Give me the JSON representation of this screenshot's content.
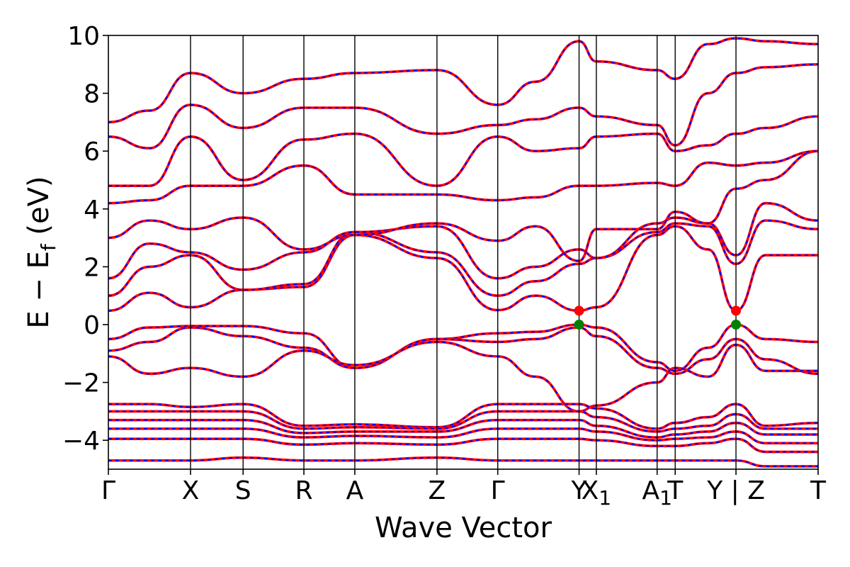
{
  "chart_data": {
    "type": "line",
    "title": "",
    "xlabel": "Wave Vector",
    "ylabel": "E − E",
    "ylabel_sub": "f",
    "ylabel_unit": " (eV)",
    "ylim": [
      -5,
      10
    ],
    "yticks": [
      10,
      8,
      6,
      4,
      2,
      0,
      -2,
      -4
    ],
    "ytick_labels": [
      "10",
      "8",
      "6",
      "4",
      "2",
      "0",
      "−2",
      "−4"
    ],
    "grid": false,
    "legend": "none",
    "k_path_labels": [
      "Γ",
      "X",
      "S",
      "R",
      "A",
      "Z",
      "Γ",
      "Y",
      "X1",
      "A1",
      "T",
      "Y | Z",
      "T"
    ],
    "k_path_positions": [
      0,
      1.0,
      1.64,
      2.38,
      3.0,
      4.0,
      4.74,
      5.73,
      5.94,
      6.68,
      6.9,
      7.64,
      8.64
    ],
    "line_colors": {
      "band_solid": "#ff0000",
      "band_dash": "#0000ff",
      "vbm_marker": "#008000",
      "cbm_marker": "#ff0000"
    },
    "band_extrema": [
      {
        "name": "CBM",
        "k": 5.73,
        "energy": 0.48
      },
      {
        "name": "VBM",
        "k": 5.73,
        "energy": 0.0
      },
      {
        "name": "CBM",
        "k": 7.64,
        "energy": 0.48
      },
      {
        "name": "VBM",
        "k": 7.64,
        "energy": 0.0
      }
    ],
    "series": [
      {
        "x": [
          0,
          0.5,
          1.0,
          1.64,
          2.38,
          3.0,
          4.0,
          4.74,
          5.2,
          5.73,
          5.94,
          6.68,
          6.9,
          7.3,
          7.64,
          8.0,
          8.64
        ],
        "values": [
          -0.5,
          -0.1,
          -0.05,
          -0.05,
          -0.3,
          -1.5,
          -0.5,
          -0.3,
          -0.25,
          0.0,
          -0.1,
          -1.3,
          -1.6,
          -0.8,
          0.0,
          -0.5,
          -0.6
        ]
      },
      {
        "x": [
          0,
          0.5,
          1.0,
          1.64,
          2.38,
          3.0,
          4.0,
          4.74,
          5.2,
          5.73,
          5.94,
          6.68,
          6.9,
          7.3,
          7.64,
          8.0,
          8.64
        ],
        "values": [
          -0.9,
          -0.6,
          -0.1,
          -0.4,
          -0.8,
          -1.5,
          -0.5,
          -0.6,
          -0.5,
          -0.1,
          -0.4,
          -1.5,
          -1.7,
          -1.2,
          -0.5,
          -1.2,
          -1.7
        ]
      },
      {
        "x": [
          0,
          0.5,
          1.0,
          1.64,
          2.38,
          3.0,
          4.0,
          4.74,
          5.2,
          5.73,
          5.94,
          6.68,
          6.9,
          7.3,
          7.64,
          8.0,
          8.64
        ],
        "values": [
          -1.1,
          -1.7,
          -1.5,
          -1.8,
          -0.9,
          -1.4,
          -0.6,
          -1.1,
          -1.8,
          -3.0,
          -2.8,
          -2.0,
          -1.5,
          -1.8,
          -0.7,
          -1.6,
          -1.6
        ]
      },
      {
        "x": [
          0,
          0.5,
          1.0,
          1.64,
          2.38,
          3.0,
          4.0,
          4.74,
          5.2,
          5.73,
          5.94,
          6.68,
          6.9,
          7.3,
          7.64,
          8.0,
          8.64
        ],
        "values": [
          0.48,
          1.1,
          0.6,
          1.2,
          1.3,
          3.1,
          2.3,
          0.5,
          1.0,
          0.48,
          0.6,
          3.1,
          3.4,
          2.6,
          0.48,
          2.4,
          2.4
        ]
      },
      {
        "x": [
          0,
          0.5,
          1.0,
          1.64,
          2.38,
          3.0,
          4.0,
          4.74,
          5.2,
          5.73,
          5.94,
          6.68,
          6.9,
          7.3,
          7.64,
          8.0,
          8.64
        ],
        "values": [
          1.0,
          2.0,
          2.4,
          1.2,
          1.4,
          3.2,
          2.5,
          1.0,
          1.5,
          2.1,
          2.3,
          3.2,
          3.5,
          3.4,
          2.1,
          3.6,
          3.3
        ]
      },
      {
        "x": [
          0,
          0.5,
          1.0,
          1.64,
          2.38,
          3.0,
          4.0,
          4.74,
          5.2,
          5.73,
          5.94,
          6.68,
          6.9,
          7.3,
          7.64,
          8.0,
          8.64
        ],
        "values": [
          1.6,
          2.8,
          2.5,
          1.9,
          2.5,
          3.2,
          3.4,
          1.6,
          2.0,
          2.6,
          2.3,
          3.5,
          3.7,
          3.5,
          2.4,
          4.2,
          3.6
        ]
      },
      {
        "x": [
          0,
          0.5,
          1.0,
          1.64,
          2.38,
          3.0,
          4.0,
          4.74,
          5.2,
          5.73,
          5.94,
          6.68,
          6.9,
          7.3,
          7.64,
          8.0,
          8.64
        ],
        "values": [
          3.0,
          3.6,
          3.3,
          3.7,
          2.6,
          3.1,
          3.5,
          2.9,
          3.4,
          2.2,
          3.3,
          3.3,
          3.9,
          3.5,
          4.7,
          5.0,
          6.0
        ]
      },
      {
        "x": [
          0,
          0.5,
          1.0,
          1.64,
          2.38,
          3.0,
          4.0,
          4.74,
          5.2,
          5.73,
          5.94,
          6.68,
          6.9,
          7.3,
          7.64,
          8.0,
          8.64
        ],
        "values": [
          4.2,
          4.3,
          4.8,
          4.8,
          5.5,
          4.5,
          4.5,
          4.3,
          4.4,
          4.8,
          4.8,
          4.9,
          4.8,
          5.6,
          5.5,
          5.6,
          6.0
        ]
      },
      {
        "x": [
          0,
          0.5,
          1.0,
          1.64,
          2.38,
          3.0,
          4.0,
          4.74,
          5.2,
          5.73,
          5.94,
          6.68,
          6.9,
          7.3,
          7.64,
          8.0,
          8.64
        ],
        "values": [
          4.8,
          4.8,
          6.5,
          5.0,
          6.4,
          6.6,
          4.8,
          6.5,
          6.0,
          6.1,
          6.5,
          6.6,
          6.0,
          6.2,
          6.6,
          6.8,
          7.2
        ]
      },
      {
        "x": [
          0,
          0.5,
          1.0,
          1.64,
          2.38,
          3.0,
          4.0,
          4.74,
          5.2,
          5.73,
          5.94,
          6.68,
          6.9,
          7.3,
          7.64,
          8.0,
          8.64
        ],
        "values": [
          6.5,
          6.1,
          7.6,
          6.8,
          7.5,
          7.5,
          6.6,
          6.9,
          7.1,
          7.5,
          7.2,
          6.9,
          6.2,
          8.0,
          8.7,
          8.9,
          9.0
        ]
      },
      {
        "x": [
          0,
          0.5,
          1.0,
          1.64,
          2.38,
          3.0,
          4.0,
          4.74,
          5.2,
          5.73,
          5.94,
          6.68,
          6.9,
          7.3,
          7.64,
          8.0,
          8.64
        ],
        "values": [
          7.0,
          7.4,
          8.7,
          8.0,
          8.5,
          8.7,
          8.8,
          7.6,
          8.4,
          9.8,
          9.1,
          8.8,
          8.5,
          9.7,
          9.9,
          9.8,
          9.7
        ]
      },
      {
        "x": [
          0,
          0.5,
          1.0,
          1.64,
          2.38,
          3.0,
          4.0,
          4.74,
          5.2,
          5.73,
          5.94,
          6.68,
          6.9,
          7.3,
          7.64,
          8.0,
          8.64
        ],
        "values": [
          -2.75,
          -2.75,
          -2.85,
          -2.75,
          -3.5,
          -3.45,
          -3.55,
          -2.75,
          -2.75,
          -2.75,
          -2.9,
          -3.6,
          -3.4,
          -3.2,
          -2.75,
          -3.5,
          -3.4
        ]
      },
      {
        "x": [
          0,
          0.5,
          1.0,
          1.64,
          2.38,
          3.0,
          4.0,
          4.74,
          5.2,
          5.73,
          5.94,
          6.68,
          6.9,
          7.3,
          7.64,
          8.0,
          8.64
        ],
        "values": [
          -3.0,
          -3.0,
          -3.0,
          -3.0,
          -3.6,
          -3.55,
          -3.6,
          -3.0,
          -3.0,
          -3.0,
          -3.2,
          -3.7,
          -3.6,
          -3.5,
          -3.1,
          -3.6,
          -3.6
        ]
      },
      {
        "x": [
          0,
          0.5,
          1.0,
          1.64,
          2.38,
          3.0,
          4.0,
          4.74,
          5.2,
          5.73,
          5.94,
          6.68,
          6.9,
          7.3,
          7.64,
          8.0,
          8.64
        ],
        "values": [
          -3.3,
          -3.3,
          -3.3,
          -3.3,
          -3.75,
          -3.7,
          -3.7,
          -3.3,
          -3.3,
          -3.3,
          -3.5,
          -3.9,
          -3.8,
          -3.7,
          -3.4,
          -3.8,
          -3.8
        ]
      },
      {
        "x": [
          0,
          0.5,
          1.0,
          1.64,
          2.38,
          3.0,
          4.0,
          4.74,
          5.2,
          5.73,
          5.94,
          6.68,
          6.9,
          7.3,
          7.64,
          8.0,
          8.64
        ],
        "values": [
          -3.6,
          -3.6,
          -3.6,
          -3.6,
          -3.9,
          -3.85,
          -3.9,
          -3.6,
          -3.6,
          -3.6,
          -3.7,
          -4.0,
          -3.95,
          -3.9,
          -3.7,
          -4.1,
          -4.1
        ]
      },
      {
        "x": [
          0,
          0.5,
          1.0,
          1.64,
          2.38,
          3.0,
          4.0,
          4.74,
          5.2,
          5.73,
          5.94,
          6.68,
          6.9,
          7.3,
          7.64,
          8.0,
          8.64
        ],
        "values": [
          -3.95,
          -3.95,
          -3.95,
          -3.95,
          -4.15,
          -4.1,
          -4.15,
          -3.95,
          -3.95,
          -3.95,
          -4.0,
          -4.2,
          -4.2,
          -4.1,
          -3.95,
          -4.4,
          -4.4
        ]
      },
      {
        "x": [
          0,
          0.5,
          1.0,
          1.64,
          2.38,
          3.0,
          4.0,
          4.74,
          5.2,
          5.73,
          5.94,
          6.68,
          6.9,
          7.3,
          7.64,
          8.0,
          8.64
        ],
        "values": [
          -4.7,
          -4.7,
          -4.7,
          -4.6,
          -4.7,
          -4.7,
          -4.6,
          -4.7,
          -4.7,
          -4.7,
          -4.7,
          -4.7,
          -4.7,
          -4.7,
          -4.7,
          -4.9,
          -4.9
        ]
      }
    ]
  }
}
